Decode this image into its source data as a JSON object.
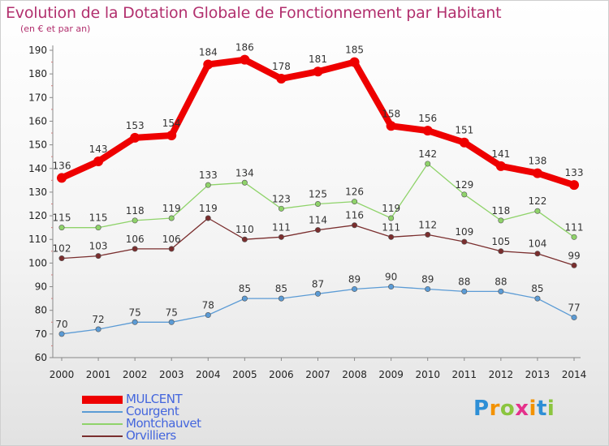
{
  "title": "Evolution de la Dotation Globale de Fonctionnement par Habitant",
  "subtitle": "(en € et par an)",
  "colors": {
    "title": "#b2306e",
    "axis": "#888888",
    "tick_text": "#222222",
    "value_text": "#333333",
    "legend_text": "#4466dd"
  },
  "logo": {
    "letters": [
      "P",
      "r",
      "o",
      "x",
      "i",
      "t",
      "i"
    ],
    "colors": [
      "#2e8fd6",
      "#f39200",
      "#8bc53f",
      "#e5308b",
      "#f39200",
      "#2e8fd6",
      "#8bc53f"
    ]
  },
  "chart_data": {
    "type": "line",
    "title": "Evolution de la Dotation Globale de Fonctionnement par Habitant",
    "subtitle": "(en € et par an)",
    "x": [
      "2000",
      "2001",
      "2002",
      "2003",
      "2004",
      "2005",
      "2006",
      "2007",
      "2008",
      "2009",
      "2010",
      "2011",
      "2012",
      "2013",
      "2014"
    ],
    "ylim": [
      60,
      190
    ],
    "yticks": [
      60,
      70,
      80,
      90,
      100,
      110,
      120,
      130,
      140,
      150,
      160,
      170,
      180,
      190
    ],
    "legend_position": "bottom-left",
    "series": [
      {
        "name": "MULCENT",
        "color": "#ee0000",
        "values": [
          136,
          143,
          153,
          154,
          184,
          186,
          178,
          181,
          185,
          158,
          156,
          151,
          141,
          138,
          133
        ],
        "labels": [
          "136",
          "143",
          "153",
          "154",
          "184",
          "186",
          "178",
          "181",
          "185",
          "158",
          "156",
          "151",
          "141",
          "138",
          "133"
        ]
      },
      {
        "name": "Courgent",
        "color": "#5b9bd5",
        "values": [
          70,
          72,
          75,
          75,
          78,
          85,
          85,
          87,
          89,
          90,
          89,
          88,
          88,
          85,
          77
        ],
        "labels": [
          "70",
          "72",
          "75",
          "75",
          "78",
          "85",
          "85",
          "87",
          "89",
          "90",
          "89",
          "88",
          "88",
          "85",
          "77"
        ]
      },
      {
        "name": "Montchauvet",
        "color": "#8fd36a",
        "values": [
          115,
          115,
          118,
          119,
          133,
          134,
          123,
          125,
          126,
          119,
          142,
          129,
          118,
          122,
          111
        ],
        "labels": [
          "115",
          "115",
          "118",
          "119",
          "133",
          "134",
          "123",
          "125",
          "126",
          "119",
          "142",
          "129",
          "118",
          "122",
          "111"
        ]
      },
      {
        "name": "Orvilliers",
        "color": "#7a2e2e",
        "values": [
          102,
          103,
          106,
          106,
          119,
          110,
          111,
          114,
          116,
          111,
          112,
          109,
          105,
          104,
          99
        ],
        "labels": [
          "102",
          "103",
          "106",
          "106",
          "119",
          "110",
          "111",
          "114",
          "116",
          "111",
          "112",
          "109",
          "105",
          "104",
          "99"
        ]
      }
    ]
  }
}
